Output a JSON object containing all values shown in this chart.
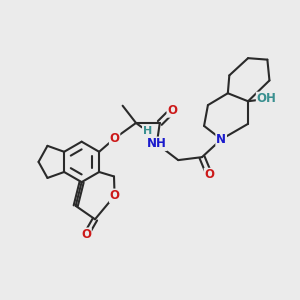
{
  "bg": "#ebebeb",
  "bond_color": "#2a2a2a",
  "lw": 1.5,
  "atom_colors": {
    "N": "#1a1acc",
    "O": "#cc1a1a",
    "H": "#3a9090",
    "C": "#2a2a2a"
  },
  "figsize": [
    3.0,
    3.0
  ],
  "dpi": 100,
  "xlim": [
    0,
    10
  ],
  "ylim": [
    0,
    10
  ]
}
